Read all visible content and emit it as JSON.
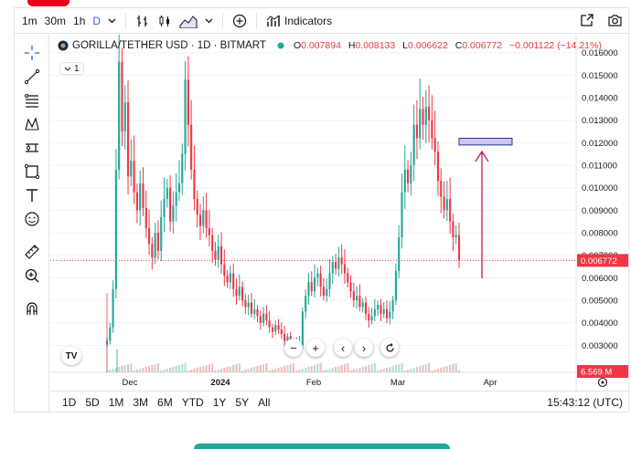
{
  "toolbar": {
    "intervals": [
      "1m",
      "30m",
      "1h",
      "D"
    ],
    "active_interval": "D",
    "indicators_label": "Indicators",
    "icons": [
      "chevron-down-icon",
      "bar-chart-icon",
      "candles-icon",
      "area-icon",
      "plus-circle-icon",
      "indicators-icon",
      "fullscreen-icon",
      "camera-icon"
    ]
  },
  "legend": {
    "symbol": "GORILLA/TETHER USD · 1D · BITMART",
    "o_label": "O",
    "o_value": "0.007894",
    "h_label": "H",
    "h_value": "0.008133",
    "l_label": "L",
    "l_value": "0.006622",
    "c_label": "C",
    "c_value": "0.006772",
    "change": "−0.001122 (−14.21%)",
    "indicator_count": "1"
  },
  "left_tools": [
    "crosshair-icon",
    "trendline-icon",
    "fib-icon",
    "pattern-icon",
    "prediction-icon",
    "brush-rect-icon",
    "text-icon",
    "emoji-icon",
    "ruler-icon",
    "zoom-in-icon",
    "magnet-icon"
  ],
  "range_buttons": [
    "1D",
    "5D",
    "1M",
    "3M",
    "6M",
    "YTD",
    "1Y",
    "5Y",
    "All"
  ],
  "clock": "15:43:12 (UTC)",
  "price_label": "0.006772",
  "volume_label": "6.569 M",
  "nav": {
    "minus": "−",
    "plus": "+",
    "left": "‹",
    "right": "›"
  },
  "colors": {
    "up": "#26a69a",
    "down": "#f23645",
    "annotation_fill": "#d1c4f2",
    "annotation_stroke": "#1e3a8a",
    "arrow": "#c2185b"
  },
  "chart_data": {
    "type": "candlestick",
    "y_axis": {
      "ticks": [
        "0.016000",
        "0.015000",
        "0.014000",
        "0.013000",
        "0.012000",
        "0.011000",
        "0.010000",
        "0.009000",
        "0.008000",
        "0.007000",
        "0.006000",
        "0.005000",
        "0.004000",
        "0.003000"
      ],
      "range": [
        0.0018,
        0.0168
      ]
    },
    "x_axis": {
      "ticks": [
        "Dec",
        "2024",
        "Feb",
        "Mar",
        "Apr"
      ]
    },
    "last_price": 0.006772,
    "annotation_box_range": [
      0.0119,
      0.0122
    ],
    "closes": [
      0.0032,
      0.0038,
      0.0055,
      0.0108,
      0.0156,
      0.0125,
      0.0138,
      0.0105,
      0.0112,
      0.0098,
      0.009,
      0.0102,
      0.0091,
      0.0082,
      0.0075,
      0.0069,
      0.008,
      0.0072,
      0.0087,
      0.0095,
      0.01,
      0.0085,
      0.0092,
      0.0098,
      0.0102,
      0.0115,
      0.0148,
      0.0128,
      0.0108,
      0.0095,
      0.0088,
      0.0083,
      0.009,
      0.0082,
      0.0079,
      0.0072,
      0.0068,
      0.0074,
      0.0066,
      0.0061,
      0.0058,
      0.0062,
      0.0055,
      0.0052,
      0.0056,
      0.005,
      0.0047,
      0.0049,
      0.0044,
      0.0046,
      0.0043,
      0.004,
      0.0044,
      0.0041,
      0.0038,
      0.0036,
      0.0039,
      0.0037,
      0.0035,
      0.0032,
      0.0034,
      0.0031,
      0.0029,
      0.0031,
      0.003,
      0.0045,
      0.0052,
      0.0058,
      0.0054,
      0.006,
      0.0062,
      0.0056,
      0.0052,
      0.0055,
      0.0062,
      0.0067,
      0.0064,
      0.0069,
      0.0066,
      0.0062,
      0.0058,
      0.0054,
      0.005,
      0.0052,
      0.0047,
      0.0049,
      0.0044,
      0.0041,
      0.0043,
      0.0046,
      0.0048,
      0.0044,
      0.0046,
      0.0042,
      0.0045,
      0.005,
      0.0063,
      0.0078,
      0.0098,
      0.0108,
      0.0102,
      0.011,
      0.0128,
      0.0122,
      0.0135,
      0.0128,
      0.0136,
      0.013,
      0.0122,
      0.0116,
      0.0103,
      0.0096,
      0.009,
      0.0095,
      0.0085,
      0.0078,
      0.0079,
      0.0068
    ]
  }
}
